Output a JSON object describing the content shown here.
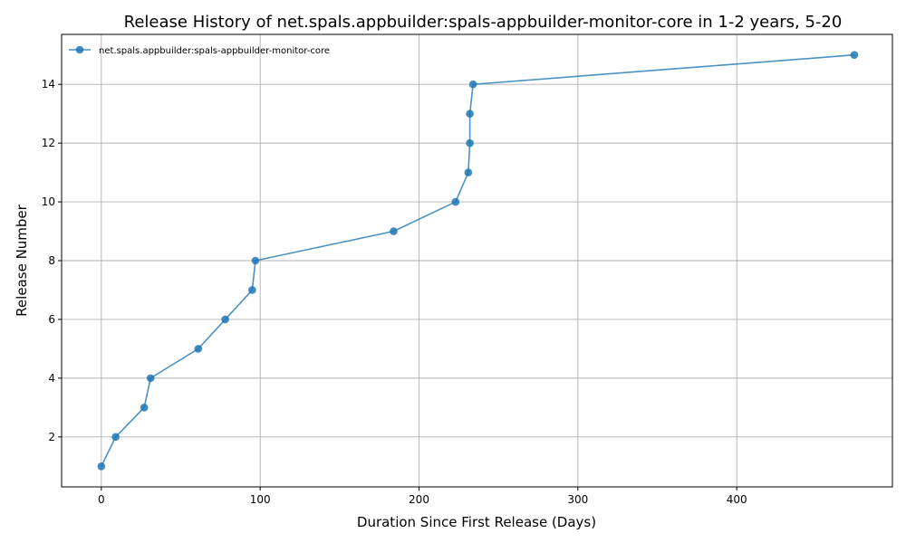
{
  "chart_data": {
    "type": "line",
    "title": "Release History of net.spals.appbuilder:spals-appbuilder-monitor-core in 1-2 years, 5-20",
    "xlabel": "Duration Since First Release (Days)",
    "ylabel": "Release Number",
    "xlim": [
      -25,
      498
    ],
    "ylim": [
      0.3,
      15.7
    ],
    "xticks": [
      0,
      100,
      200,
      300,
      400
    ],
    "yticks": [
      2,
      4,
      6,
      8,
      10,
      12,
      14
    ],
    "grid": true,
    "legend_position": "top-left",
    "series": [
      {
        "name": "net.spals.appbuilder:spals-appbuilder-monitor-core",
        "color": "#1f77b4",
        "marker": "circle",
        "x": [
          0,
          9,
          27,
          31,
          61,
          78,
          95,
          97,
          184,
          223,
          231,
          232,
          232,
          234,
          474
        ],
        "y": [
          1,
          2,
          3,
          4,
          5,
          6,
          7,
          8,
          9,
          10,
          11,
          12,
          13,
          14,
          15
        ]
      }
    ]
  }
}
